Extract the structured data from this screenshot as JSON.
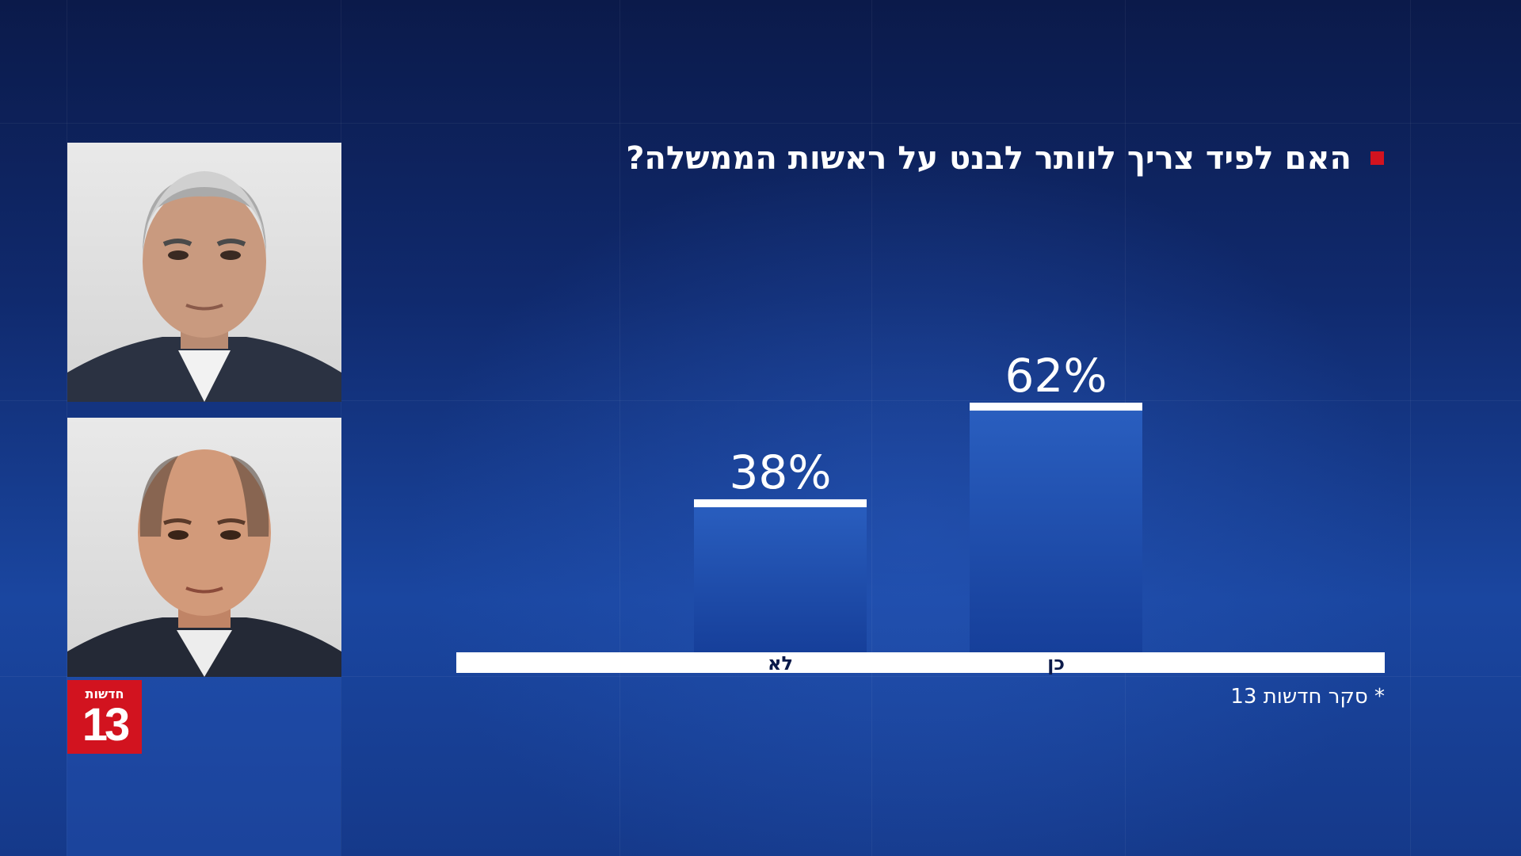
{
  "logo": {
    "word": "חדשות",
    "number": "13"
  },
  "colors": {
    "brand_red": "#d2131f",
    "bar_top": "#2a5fc0",
    "bar_bottom": "#163f9a",
    "cap": "#ffffff",
    "baseline": "#ffffff"
  },
  "portraits": {
    "top_icon": "person-portrait",
    "bottom_icon": "person-portrait"
  },
  "chart_data": {
    "type": "bar",
    "title": "האם לפיד צריך לוותר לבנט על ראשות הממשלה?",
    "categories": [
      "לא",
      "כן"
    ],
    "values": [
      38,
      62
    ],
    "value_labels": [
      "38%",
      "62%"
    ],
    "unit": "%",
    "ylim": [
      0,
      100
    ],
    "grid": false,
    "legend": "none",
    "source_note": "* סקר חדשות 13"
  }
}
